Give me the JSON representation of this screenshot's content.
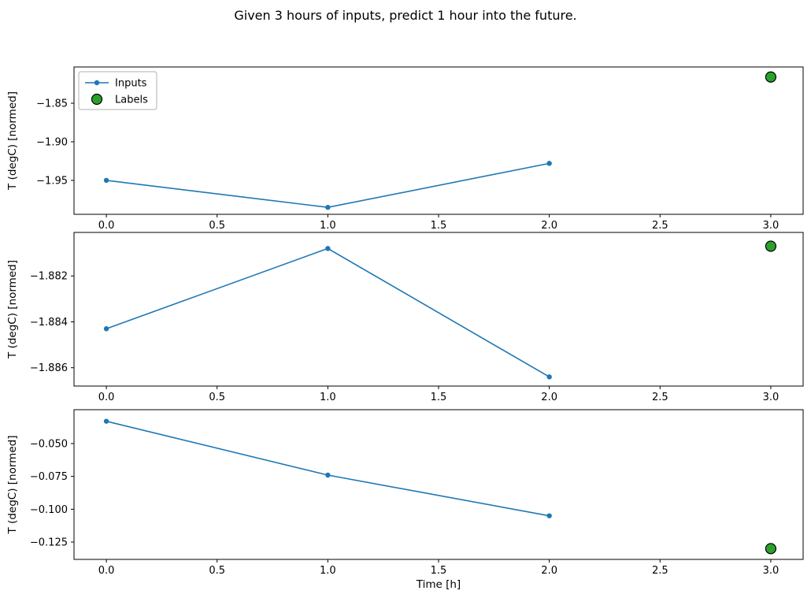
{
  "title": "Given 3 hours of inputs, predict 1 hour into the future.",
  "xlabel": "Time [h]",
  "legend": {
    "inputs_label": "Inputs",
    "labels_label": "Labels"
  },
  "colors": {
    "line": "#1f77b4",
    "label_fill": "#2ca02c",
    "label_edge": "#000000",
    "legend_border": "#b0b0b0"
  },
  "chart_data": [
    {
      "type": "line",
      "ylabel": "T (degC) [normed]",
      "x": [
        0,
        1,
        2
      ],
      "series": [
        {
          "name": "Inputs",
          "values": [
            -1.95,
            -1.985,
            -1.928
          ]
        }
      ],
      "label_point": {
        "x": 3,
        "y": -1.816
      },
      "xlim": [
        -0.146,
        3.146
      ],
      "ylim": [
        -1.994,
        -1.803
      ],
      "xticks": [
        0,
        0.5,
        1,
        1.5,
        2,
        2.5,
        3
      ],
      "xtick_labels": [
        "0.0",
        "0.5",
        "1.0",
        "1.5",
        "2.0",
        "2.5",
        "3.0"
      ],
      "yticks": [
        -1.85,
        -1.9,
        -1.95
      ],
      "ytick_labels": [
        "−1.85",
        "−1.90",
        "−1.95"
      ],
      "show_legend": true,
      "show_xlabel": false
    },
    {
      "type": "line",
      "ylabel": "T (degC) [normed]",
      "x": [
        0,
        1,
        2
      ],
      "series": [
        {
          "name": "Inputs",
          "values": [
            -1.8843,
            -1.8808,
            -1.8864
          ]
        }
      ],
      "label_point": {
        "x": 3,
        "y": -1.8807
      },
      "xlim": [
        -0.146,
        3.146
      ],
      "ylim": [
        -1.8868,
        -1.8801
      ],
      "xticks": [
        0,
        0.5,
        1,
        1.5,
        2,
        2.5,
        3
      ],
      "xtick_labels": [
        "0.0",
        "0.5",
        "1.0",
        "1.5",
        "2.0",
        "2.5",
        "3.0"
      ],
      "yticks": [
        -1.882,
        -1.884,
        -1.886
      ],
      "ytick_labels": [
        "−1.882",
        "−1.884",
        "−1.886"
      ],
      "show_legend": false,
      "show_xlabel": false
    },
    {
      "type": "line",
      "ylabel": "T (degC) [normed]",
      "x": [
        0,
        1,
        2
      ],
      "series": [
        {
          "name": "Inputs",
          "values": [
            -0.033,
            -0.074,
            -0.105
          ]
        }
      ],
      "label_point": {
        "x": 3,
        "y": -0.13
      },
      "xlim": [
        -0.146,
        3.146
      ],
      "ylim": [
        -0.1382,
        -0.0242
      ],
      "xticks": [
        0,
        0.5,
        1,
        1.5,
        2,
        2.5,
        3
      ],
      "xtick_labels": [
        "0.0",
        "0.5",
        "1.0",
        "1.5",
        "2.0",
        "2.5",
        "3.0"
      ],
      "yticks": [
        -0.05,
        -0.075,
        -0.1,
        -0.125
      ],
      "ytick_labels": [
        "−0.050",
        "−0.075",
        "−0.100",
        "−0.125"
      ],
      "show_legend": false,
      "show_xlabel": true
    }
  ]
}
